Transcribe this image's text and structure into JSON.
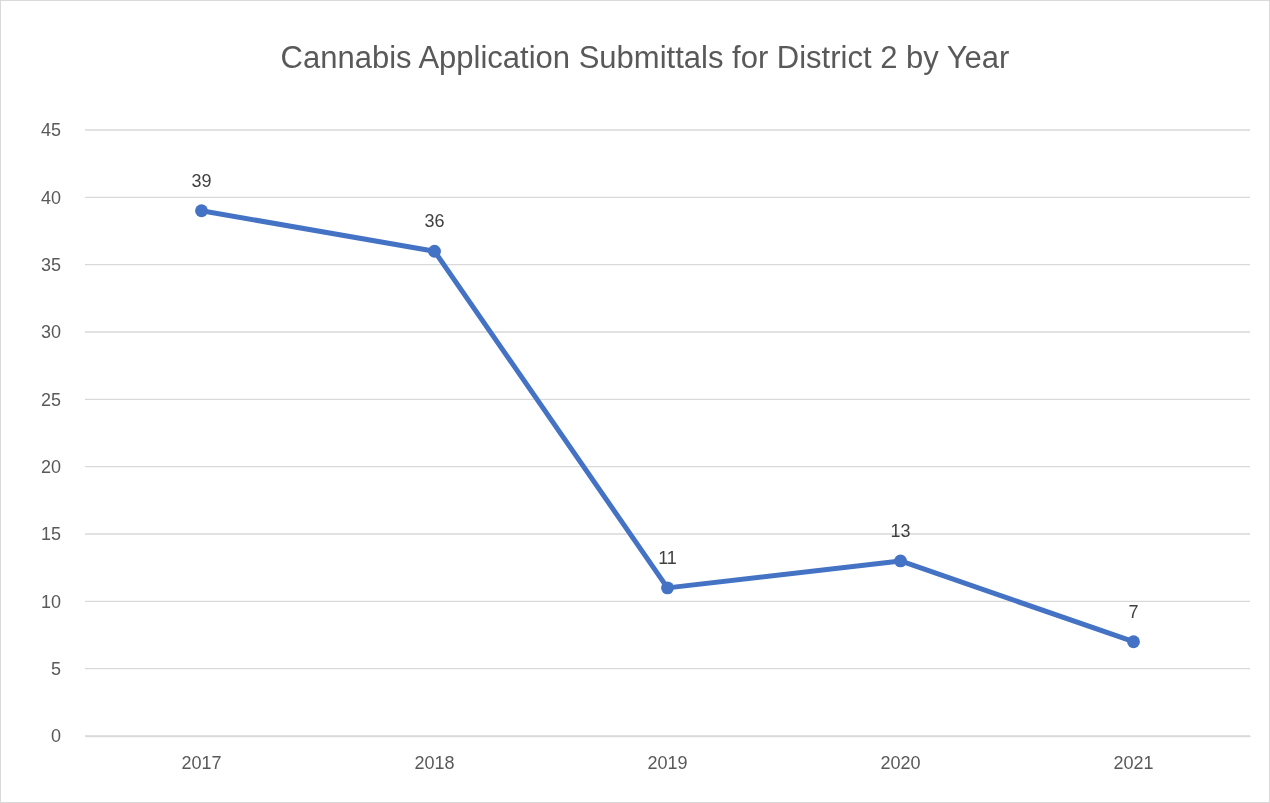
{
  "chart_data": {
    "type": "line",
    "title": "Cannabis Application Submittals for District 2 by Year",
    "categories": [
      "2017",
      "2018",
      "2019",
      "2020",
      "2021"
    ],
    "series": [
      {
        "color": "#4472c4",
        "values": [
          39,
          36,
          11,
          13,
          7
        ]
      }
    ],
    "ylim": [
      0,
      45
    ],
    "yticks": [
      0,
      5,
      10,
      15,
      20,
      25,
      30,
      35,
      40,
      45
    ],
    "grid": "y",
    "marker": "circle",
    "data_labels": true
  }
}
